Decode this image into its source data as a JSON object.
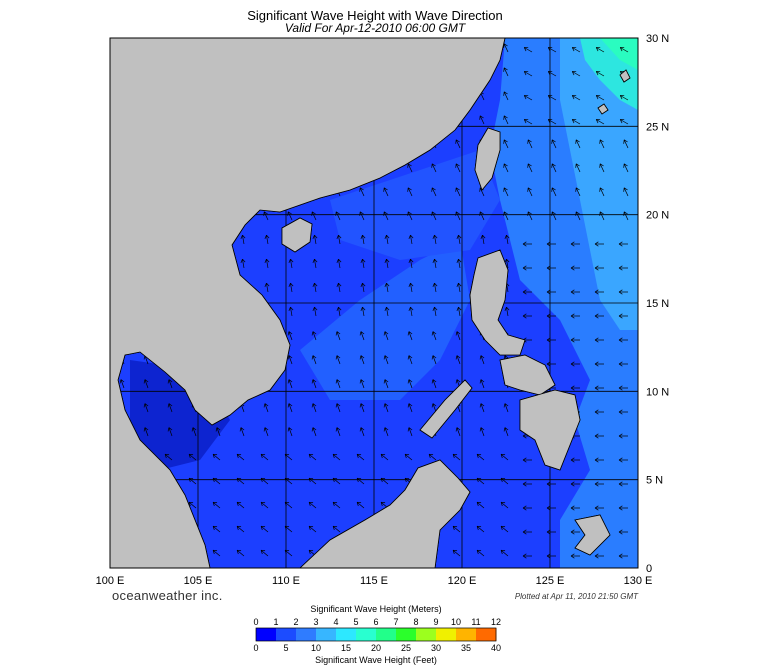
{
  "title": "Significant Wave Height with Wave Direction",
  "subtitle": "Valid For Apr-12-2010 06:00 GMT",
  "brand": "oceanweather inc.",
  "plotted": "Plotted at Apr 11, 2010 21:50 GMT",
  "map": {
    "lon_range": [
      100,
      130
    ],
    "lat_range": [
      0,
      30
    ],
    "lon_ticks": [
      "100 E",
      "105 E",
      "110 E",
      "115 E",
      "120 E",
      "125 E",
      "130 E"
    ],
    "lat_ticks": [
      "0",
      "5 N",
      "10 N",
      "15 N",
      "20 N",
      "25 N",
      "30 N"
    ],
    "land_color": "#c0c0c0",
    "ocean_base_color": "#1a3cff",
    "grid_color": "#000000"
  },
  "colorbar": {
    "meters_title": "Significant Wave Height (Meters)",
    "feet_title": "Significant Wave Height (Feet)",
    "meters_ticks": [
      "0",
      "1",
      "2",
      "3",
      "4",
      "5",
      "6",
      "7",
      "8",
      "9",
      "10",
      "11",
      "12"
    ],
    "feet_ticks": [
      "0",
      "5",
      "10",
      "15",
      "20",
      "25",
      "30",
      "35",
      "40"
    ],
    "colors": [
      "#0000ff",
      "#1c4cff",
      "#2f7cff",
      "#37b6ff",
      "#2de8ff",
      "#29ffd0",
      "#22ff8a",
      "#2bff2b",
      "#9cff1e",
      "#f0f000",
      "#ffb400",
      "#ff6a00",
      "#ff1e00"
    ]
  }
}
